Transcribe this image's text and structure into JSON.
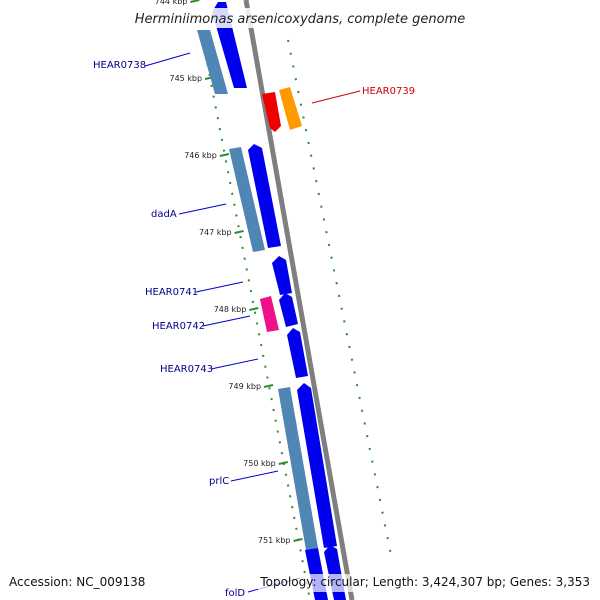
{
  "header": {
    "title": "Herminiimonas arsenicoxydans, complete genome"
  },
  "footer": {
    "accession": "Accession: NC_009138",
    "summary": "Topology: circular; Length: 3,424,307 bp; Genes: 3,353"
  },
  "colors": {
    "backbone": "#7f7f7f",
    "gene_fwd": "#0000ee",
    "gene_cds": "#4f86b4",
    "gene_highlight_red": "#ee0000",
    "gene_highlight_orange": "#ff9900",
    "gene_highlight_pink": "#ee1188",
    "tick": "#2e8b2e",
    "label_blue": "#00008b",
    "label_red": "#cc0000"
  },
  "ruler": {
    "ticks": [
      "744 kbp",
      "745 kbp",
      "746 kbp",
      "747 kbp",
      "748 kbp",
      "749 kbp",
      "750 kbp",
      "751 kbp"
    ]
  },
  "genes": [
    {
      "name": "HEAR0738",
      "color": "label_blue"
    },
    {
      "name": "HEAR0739",
      "color": "label_red"
    },
    {
      "name": "dadA",
      "color": "label_blue"
    },
    {
      "name": "HEAR0741",
      "color": "label_blue"
    },
    {
      "name": "HEAR0742",
      "color": "label_blue"
    },
    {
      "name": "HEAR0743",
      "color": "label_blue"
    },
    {
      "name": "prlC",
      "color": "label_blue"
    },
    {
      "name": "folD",
      "color": "label_blue"
    }
  ]
}
